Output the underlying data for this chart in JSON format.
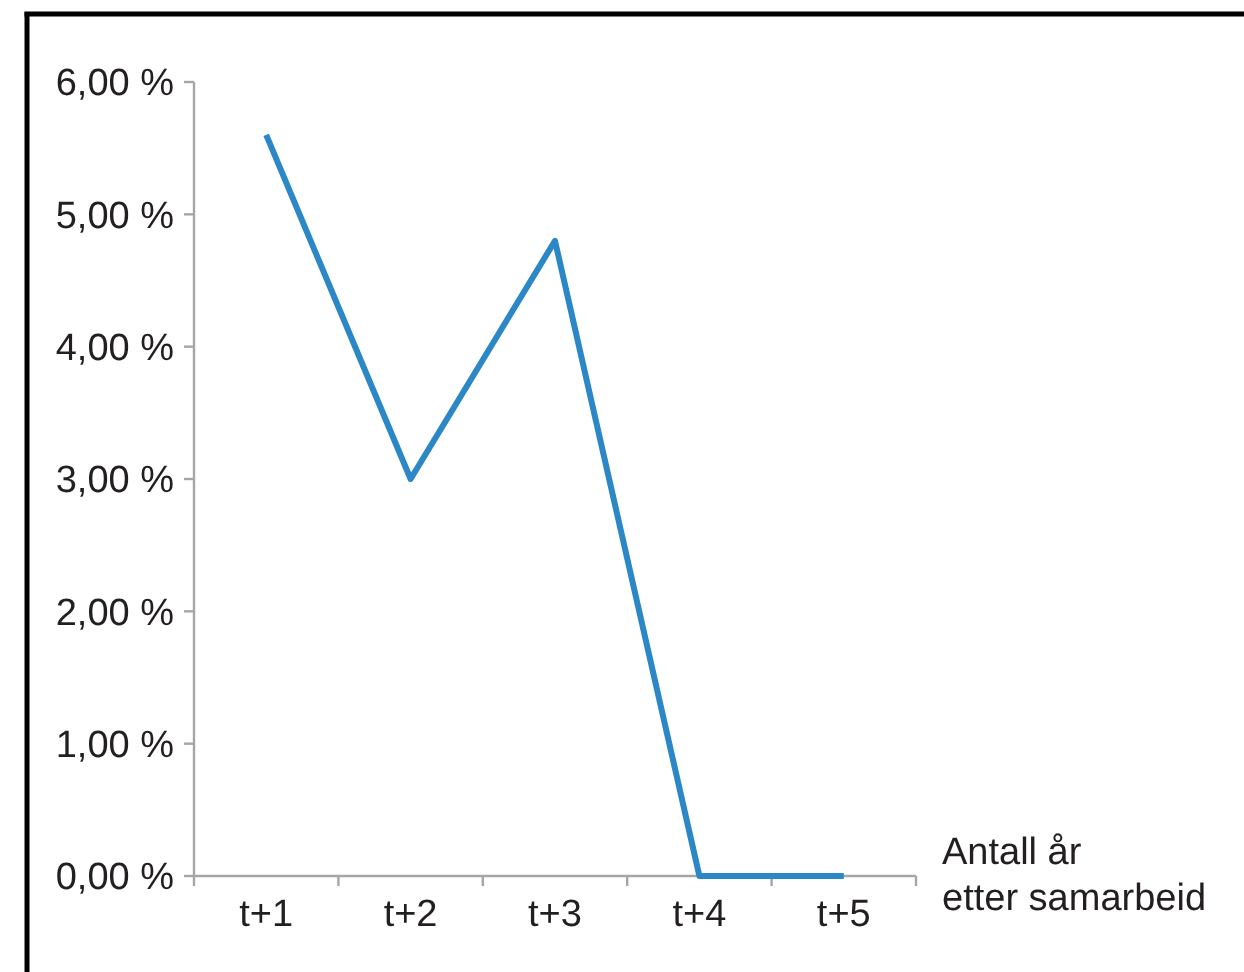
{
  "chart_data": {
    "type": "line",
    "xlabel": "Antall år\netter samarbeid",
    "categories": [
      "t+1",
      "t+2",
      "t+3",
      "t+4",
      "t+5"
    ],
    "series": [
      {
        "color": "#2b87c6",
        "values": [
          5.6,
          3.0,
          4.8,
          0,
          0
        ]
      }
    ],
    "ylim": [
      0,
      6
    ],
    "yticks": [
      {
        "value": 0,
        "label": "0,00 %"
      },
      {
        "value": 1,
        "label": "1,00 %"
      },
      {
        "value": 2,
        "label": "2,00 %"
      },
      {
        "value": 3,
        "label": "3,00 %"
      },
      {
        "value": 4,
        "label": "4,00 %"
      },
      {
        "value": 5,
        "label": "5,00 %"
      },
      {
        "value": 6,
        "label": "6,00 %"
      }
    ]
  }
}
